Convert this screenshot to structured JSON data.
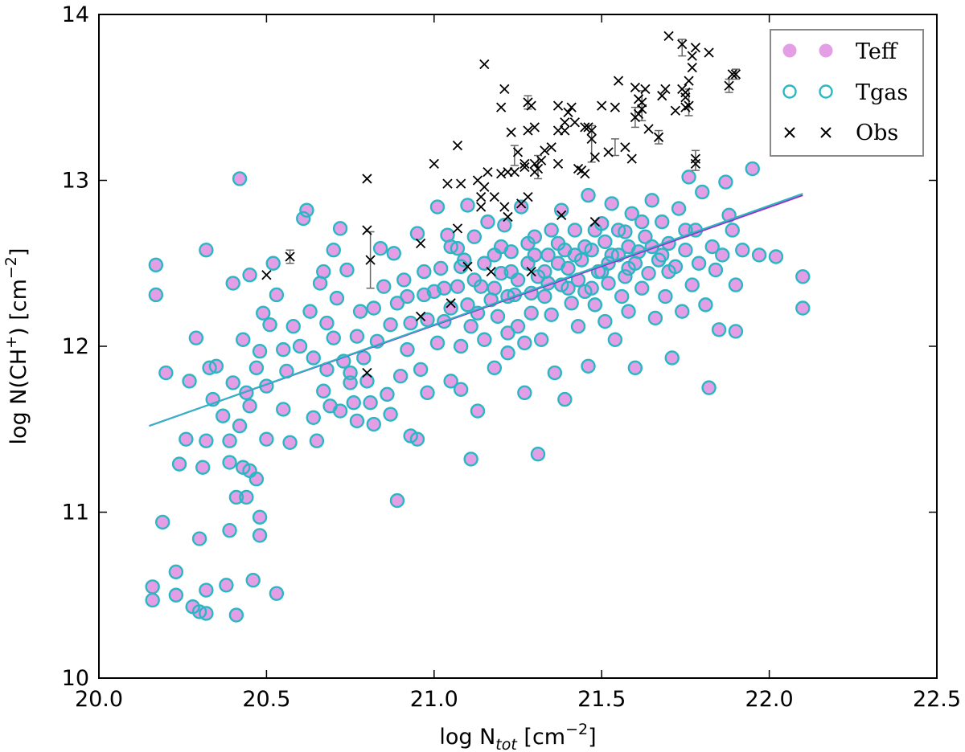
{
  "chart_data": {
    "type": "scatter",
    "title": "",
    "xlabel": {
      "base": "log N",
      "sub": "tot",
      "unit_base": " [cm",
      "unit_exp": "−2",
      "unit_close": "]"
    },
    "ylabel": {
      "base": "log N(CH",
      "sup": "+",
      "close": ") [cm",
      "unit_exp": "−2",
      "unit_close": "]"
    },
    "xlim": [
      20.0,
      22.5
    ],
    "ylim": [
      10,
      14
    ],
    "xticks": [
      "20.0",
      "20.5",
      "21.0",
      "21.5",
      "22.0",
      "22.5"
    ],
    "yticks": [
      "10",
      "11",
      "12",
      "13",
      "14"
    ],
    "legend": {
      "position": "top-right",
      "entries": [
        {
          "label": "Teff",
          "marker": "filled-circle"
        },
        {
          "label": "Tgas",
          "marker": "open-circle"
        },
        {
          "label": "Obs",
          "marker": "cross"
        }
      ]
    },
    "colors": {
      "teff": "#e39ee6",
      "tgas": "#2ab7c4",
      "obs": "#000000",
      "error": "#666666",
      "fit_teff": "#9b30c8",
      "fit_tgas": "#29b8c4"
    },
    "fit_lines": [
      {
        "name": "Teff fit",
        "x": [
          20.15,
          22.1
        ],
        "y": [
          11.52,
          12.91
        ]
      },
      {
        "name": "Tgas fit",
        "x": [
          20.15,
          22.1
        ],
        "y": [
          11.52,
          12.92
        ]
      }
    ],
    "model_points": [
      [
        20.16,
        10.55
      ],
      [
        20.16,
        10.47
      ],
      [
        20.17,
        12.49
      ],
      [
        20.17,
        12.31
      ],
      [
        20.19,
        10.94
      ],
      [
        20.2,
        11.84
      ],
      [
        20.23,
        10.64
      ],
      [
        20.23,
        10.5
      ],
      [
        20.24,
        11.29
      ],
      [
        20.26,
        11.44
      ],
      [
        20.27,
        11.79
      ],
      [
        20.28,
        10.43
      ],
      [
        20.29,
        12.05
      ],
      [
        20.3,
        10.4
      ],
      [
        20.3,
        10.84
      ],
      [
        20.31,
        11.27
      ],
      [
        20.32,
        12.58
      ],
      [
        20.32,
        10.39
      ],
      [
        20.32,
        10.53
      ],
      [
        20.32,
        11.43
      ],
      [
        20.33,
        11.87
      ],
      [
        20.34,
        11.68
      ],
      [
        20.35,
        11.88
      ],
      [
        20.37,
        11.58
      ],
      [
        20.38,
        10.56
      ],
      [
        20.39,
        11.3
      ],
      [
        20.39,
        10.89
      ],
      [
        20.39,
        11.43
      ],
      [
        20.4,
        11.78
      ],
      [
        20.4,
        12.38
      ],
      [
        20.41,
        11.09
      ],
      [
        20.41,
        10.38
      ],
      [
        20.42,
        13.01
      ],
      [
        20.42,
        11.52
      ],
      [
        20.43,
        12.04
      ],
      [
        20.43,
        11.27
      ],
      [
        20.44,
        11.09
      ],
      [
        20.44,
        11.72
      ],
      [
        20.45,
        12.43
      ],
      [
        20.45,
        11.64
      ],
      [
        20.45,
        11.25
      ],
      [
        20.46,
        10.59
      ],
      [
        20.47,
        11.2
      ],
      [
        20.47,
        11.87
      ],
      [
        20.48,
        10.97
      ],
      [
        20.48,
        10.86
      ],
      [
        20.48,
        11.97
      ],
      [
        20.49,
        12.2
      ],
      [
        20.5,
        11.44
      ],
      [
        20.5,
        11.76
      ],
      [
        20.51,
        12.13
      ],
      [
        20.52,
        12.5
      ],
      [
        20.53,
        10.51
      ],
      [
        20.53,
        12.31
      ],
      [
        20.55,
        11.98
      ],
      [
        20.55,
        11.62
      ],
      [
        20.56,
        11.85
      ],
      [
        20.57,
        11.42
      ],
      [
        20.58,
        12.12
      ],
      [
        20.6,
        12.0
      ],
      [
        20.61,
        12.77
      ],
      [
        20.62,
        12.82
      ],
      [
        20.63,
        12.21
      ],
      [
        20.64,
        11.93
      ],
      [
        20.64,
        11.57
      ],
      [
        20.65,
        11.43
      ],
      [
        20.66,
        12.38
      ],
      [
        20.67,
        11.73
      ],
      [
        20.67,
        12.45
      ],
      [
        20.68,
        11.86
      ],
      [
        20.68,
        12.14
      ],
      [
        20.69,
        11.64
      ],
      [
        20.7,
        12.58
      ],
      [
        20.7,
        12.05
      ],
      [
        20.71,
        12.29
      ],
      [
        20.72,
        12.71
      ],
      [
        20.72,
        11.61
      ],
      [
        20.73,
        11.91
      ],
      [
        20.74,
        12.46
      ],
      [
        20.75,
        11.78
      ],
      [
        20.75,
        11.84
      ],
      [
        20.76,
        11.66
      ],
      [
        20.77,
        12.06
      ],
      [
        20.77,
        11.55
      ],
      [
        20.78,
        12.21
      ],
      [
        20.79,
        11.93
      ],
      [
        20.8,
        11.79
      ],
      [
        20.81,
        11.66
      ],
      [
        20.82,
        12.23
      ],
      [
        20.82,
        11.53
      ],
      [
        20.83,
        12.03
      ],
      [
        20.84,
        12.59
      ],
      [
        20.85,
        12.36
      ],
      [
        20.86,
        11.71
      ],
      [
        20.87,
        11.59
      ],
      [
        20.87,
        12.13
      ],
      [
        20.88,
        12.56
      ],
      [
        20.89,
        12.26
      ],
      [
        20.89,
        11.07
      ],
      [
        20.9,
        11.82
      ],
      [
        20.91,
        12.4
      ],
      [
        20.92,
        11.98
      ],
      [
        20.93,
        11.46
      ],
      [
        20.93,
        12.14
      ],
      [
        20.95,
        11.44
      ],
      [
        20.95,
        12.68
      ],
      [
        20.96,
        11.86
      ],
      [
        20.97,
        12.31
      ],
      [
        20.98,
        12.16
      ],
      [
        20.98,
        11.72
      ],
      [
        21.0,
        12.33
      ],
      [
        21.01,
        12.02
      ],
      [
        21.01,
        12.84
      ],
      [
        21.02,
        12.47
      ],
      [
        21.03,
        12.15
      ],
      [
        21.04,
        12.67
      ],
      [
        21.05,
        11.79
      ],
      [
        21.05,
        12.23
      ],
      [
        21.07,
        12.59
      ],
      [
        21.07,
        12.36
      ],
      [
        21.08,
        11.74
      ],
      [
        21.08,
        12.0
      ],
      [
        21.09,
        12.52
      ],
      [
        21.1,
        12.85
      ],
      [
        21.11,
        12.12
      ],
      [
        21.11,
        11.32
      ],
      [
        21.12,
        12.66
      ],
      [
        21.13,
        11.61
      ],
      [
        21.14,
        12.36
      ],
      [
        21.15,
        12.04
      ],
      [
        21.16,
        12.75
      ],
      [
        21.17,
        12.28
      ],
      [
        21.18,
        12.55
      ],
      [
        21.18,
        11.87
      ],
      [
        21.19,
        12.18
      ],
      [
        21.2,
        12.44
      ],
      [
        21.21,
        12.73
      ],
      [
        21.22,
        12.08
      ],
      [
        21.22,
        11.96
      ],
      [
        21.23,
        12.57
      ],
      [
        21.24,
        12.31
      ],
      [
        21.25,
        12.12
      ],
      [
        21.26,
        12.84
      ],
      [
        21.27,
        12.02
      ],
      [
        21.27,
        11.72
      ],
      [
        21.28,
        12.5
      ],
      [
        21.29,
        12.2
      ],
      [
        21.3,
        12.66
      ],
      [
        21.31,
        11.35
      ],
      [
        21.31,
        12.42
      ],
      [
        21.32,
        12.04
      ],
      [
        21.33,
        12.3
      ],
      [
        21.34,
        12.55
      ],
      [
        21.35,
        12.19
      ],
      [
        21.36,
        11.84
      ],
      [
        21.37,
        12.62
      ],
      [
        21.38,
        12.37
      ],
      [
        21.38,
        12.82
      ],
      [
        21.39,
        11.68
      ],
      [
        21.4,
        12.47
      ],
      [
        21.41,
        12.26
      ],
      [
        21.42,
        12.7
      ],
      [
        21.43,
        12.12
      ],
      [
        21.44,
        12.52
      ],
      [
        21.45,
        12.33
      ],
      [
        21.46,
        12.91
      ],
      [
        21.46,
        11.88
      ],
      [
        21.47,
        12.58
      ],
      [
        21.48,
        12.25
      ],
      [
        21.49,
        12.45
      ],
      [
        21.5,
        12.74
      ],
      [
        21.51,
        12.15
      ],
      [
        21.51,
        12.63
      ],
      [
        21.52,
        12.38
      ],
      [
        21.53,
        12.86
      ],
      [
        21.54,
        12.04
      ],
      [
        21.55,
        12.55
      ],
      [
        21.56,
        12.3
      ],
      [
        21.57,
        12.69
      ],
      [
        21.58,
        12.47
      ],
      [
        21.58,
        12.21
      ],
      [
        21.59,
        12.8
      ],
      [
        21.6,
        11.87
      ],
      [
        21.61,
        12.57
      ],
      [
        21.62,
        12.35
      ],
      [
        21.63,
        12.66
      ],
      [
        21.64,
        12.44
      ],
      [
        21.65,
        12.88
      ],
      [
        21.66,
        12.17
      ],
      [
        21.67,
        12.52
      ],
      [
        21.68,
        12.75
      ],
      [
        21.69,
        12.3
      ],
      [
        21.7,
        12.62
      ],
      [
        21.71,
        11.93
      ],
      [
        21.72,
        12.48
      ],
      [
        21.73,
        12.83
      ],
      [
        21.74,
        12.21
      ],
      [
        21.75,
        12.58
      ],
      [
        21.76,
        13.02
      ],
      [
        21.77,
        12.37
      ],
      [
        21.78,
        12.7
      ],
      [
        21.79,
        12.5
      ],
      [
        21.8,
        12.93
      ],
      [
        21.81,
        12.25
      ],
      [
        21.82,
        11.75
      ],
      [
        21.83,
        12.6
      ],
      [
        21.84,
        12.46
      ],
      [
        21.85,
        12.1
      ],
      [
        21.86,
        12.55
      ],
      [
        21.87,
        12.99
      ],
      [
        21.88,
        12.79
      ],
      [
        21.89,
        12.7
      ],
      [
        21.9,
        12.37
      ],
      [
        21.9,
        12.09
      ],
      [
        21.92,
        12.58
      ],
      [
        21.95,
        13.07
      ],
      [
        21.97,
        12.55
      ],
      [
        22.02,
        12.54
      ],
      [
        22.1,
        12.42
      ],
      [
        22.1,
        12.23
      ],
      [
        21.05,
        12.6
      ],
      [
        21.12,
        12.4
      ],
      [
        21.2,
        12.6
      ],
      [
        21.25,
        12.4
      ],
      [
        21.3,
        12.55
      ],
      [
        21.35,
        12.7
      ],
      [
        21.4,
        12.35
      ],
      [
        21.45,
        12.6
      ],
      [
        21.5,
        12.45
      ],
      [
        21.55,
        12.7
      ],
      [
        21.6,
        12.5
      ],
      [
        21.65,
        12.6
      ],
      [
        21.7,
        12.45
      ],
      [
        21.75,
        12.7
      ],
      [
        21.42,
        12.55
      ],
      [
        21.48,
        12.7
      ],
      [
        21.52,
        12.5
      ],
      [
        21.58,
        12.6
      ],
      [
        21.62,
        12.75
      ],
      [
        21.68,
        12.55
      ],
      [
        21.1,
        12.25
      ],
      [
        21.15,
        12.5
      ],
      [
        21.22,
        12.3
      ],
      [
        21.28,
        12.62
      ],
      [
        21.33,
        12.45
      ],
      [
        21.37,
        12.5
      ],
      [
        21.43,
        12.4
      ],
      [
        21.47,
        12.35
      ],
      [
        21.53,
        12.55
      ],
      [
        21.57,
        12.42
      ],
      [
        20.92,
        12.3
      ],
      [
        20.97,
        12.45
      ],
      [
        21.03,
        12.35
      ],
      [
        21.08,
        12.48
      ],
      [
        21.13,
        12.2
      ],
      [
        21.18,
        12.35
      ],
      [
        21.23,
        12.45
      ],
      [
        21.29,
        12.32
      ],
      [
        21.34,
        12.38
      ],
      [
        21.39,
        12.58
      ]
    ],
    "obs_points": [
      [
        20.5,
        12.43
      ],
      [
        20.57,
        12.54
      ],
      [
        20.8,
        13.01
      ],
      [
        20.8,
        12.7
      ],
      [
        20.81,
        12.52
      ],
      [
        20.8,
        11.84
      ],
      [
        20.96,
        12.62
      ],
      [
        20.96,
        12.18
      ],
      [
        21.0,
        13.1
      ],
      [
        21.04,
        12.98
      ],
      [
        21.05,
        12.26
      ],
      [
        21.07,
        13.21
      ],
      [
        21.07,
        12.71
      ],
      [
        21.08,
        12.98
      ],
      [
        21.1,
        12.48
      ],
      [
        21.13,
        13.0
      ],
      [
        21.14,
        12.84
      ],
      [
        21.14,
        12.9
      ],
      [
        21.15,
        13.7
      ],
      [
        21.15,
        12.96
      ],
      [
        21.16,
        13.05
      ],
      [
        21.17,
        12.45
      ],
      [
        21.18,
        12.9
      ],
      [
        21.2,
        13.04
      ],
      [
        21.2,
        13.44
      ],
      [
        21.21,
        13.55
      ],
      [
        21.21,
        12.84
      ],
      [
        21.22,
        13.05
      ],
      [
        21.22,
        12.78
      ],
      [
        21.23,
        13.29
      ],
      [
        21.24,
        13.05
      ],
      [
        21.25,
        13.17
      ],
      [
        21.26,
        12.86
      ],
      [
        21.27,
        13.1
      ],
      [
        21.28,
        13.3
      ],
      [
        21.28,
        13.47
      ],
      [
        21.28,
        12.9
      ],
      [
        21.29,
        13.45
      ],
      [
        21.29,
        12.45
      ],
      [
        21.3,
        13.32
      ],
      [
        21.3,
        13.05
      ],
      [
        21.3,
        13.1
      ],
      [
        21.31,
        13.07
      ],
      [
        21.32,
        13.12
      ],
      [
        21.33,
        13.18
      ],
      [
        21.35,
        13.2
      ],
      [
        21.37,
        13.45
      ],
      [
        21.37,
        13.1
      ],
      [
        21.37,
        13.3
      ],
      [
        21.38,
        12.79
      ],
      [
        21.39,
        13.3
      ],
      [
        21.39,
        13.35
      ],
      [
        21.4,
        13.41
      ],
      [
        21.41,
        13.44
      ],
      [
        21.42,
        13.35
      ],
      [
        21.43,
        13.07
      ],
      [
        21.44,
        13.06
      ],
      [
        21.45,
        13.32
      ],
      [
        21.45,
        13.04
      ],
      [
        21.46,
        13.32
      ],
      [
        21.47,
        13.25
      ],
      [
        21.47,
        13.3
      ],
      [
        21.48,
        13.14
      ],
      [
        21.48,
        12.75
      ],
      [
        21.5,
        13.45
      ],
      [
        21.52,
        13.17
      ],
      [
        21.54,
        13.44
      ],
      [
        21.55,
        13.6
      ],
      [
        21.57,
        13.2
      ],
      [
        21.59,
        13.13
      ],
      [
        21.6,
        13.38
      ],
      [
        21.6,
        13.56
      ],
      [
        21.61,
        13.4
      ],
      [
        21.61,
        13.49
      ],
      [
        21.62,
        13.43
      ],
      [
        21.62,
        13.47
      ],
      [
        21.63,
        13.55
      ],
      [
        21.64,
        13.31
      ],
      [
        21.67,
        13.26
      ],
      [
        21.68,
        13.51
      ],
      [
        21.69,
        13.55
      ],
      [
        21.7,
        13.87
      ],
      [
        21.72,
        13.42
      ],
      [
        21.74,
        13.55
      ],
      [
        21.74,
        13.82
      ],
      [
        21.75,
        13.5
      ],
      [
        21.75,
        13.44
      ],
      [
        21.75,
        13.53
      ],
      [
        21.76,
        13.6
      ],
      [
        21.77,
        13.75
      ],
      [
        21.77,
        13.68
      ],
      [
        21.78,
        13.1
      ],
      [
        21.78,
        13.13
      ],
      [
        21.78,
        13.8
      ],
      [
        21.82,
        13.77
      ],
      [
        21.88,
        13.57
      ],
      [
        21.89,
        13.64
      ],
      [
        21.9,
        13.64
      ],
      [
        21.76,
        13.45
      ],
      [
        21.27,
        13.08
      ]
    ],
    "obs_errorbars": [
      [
        20.57,
        12.54,
        0.04
      ],
      [
        20.81,
        12.52,
        0.17
      ],
      [
        21.24,
        13.15,
        0.06
      ],
      [
        21.31,
        13.08,
        0.07
      ],
      [
        21.47,
        13.22,
        0.11
      ],
      [
        21.54,
        13.2,
        0.05
      ],
      [
        21.6,
        13.38,
        0.06
      ],
      [
        21.62,
        13.45,
        0.09
      ],
      [
        21.67,
        13.26,
        0.04
      ],
      [
        21.74,
        13.8,
        0.05
      ],
      [
        21.76,
        13.47,
        0.08
      ],
      [
        21.78,
        13.12,
        0.06
      ],
      [
        21.88,
        13.57,
        0.04
      ],
      [
        21.9,
        13.64,
        0.03
      ],
      [
        21.28,
        13.47,
        0.04
      ]
    ]
  }
}
